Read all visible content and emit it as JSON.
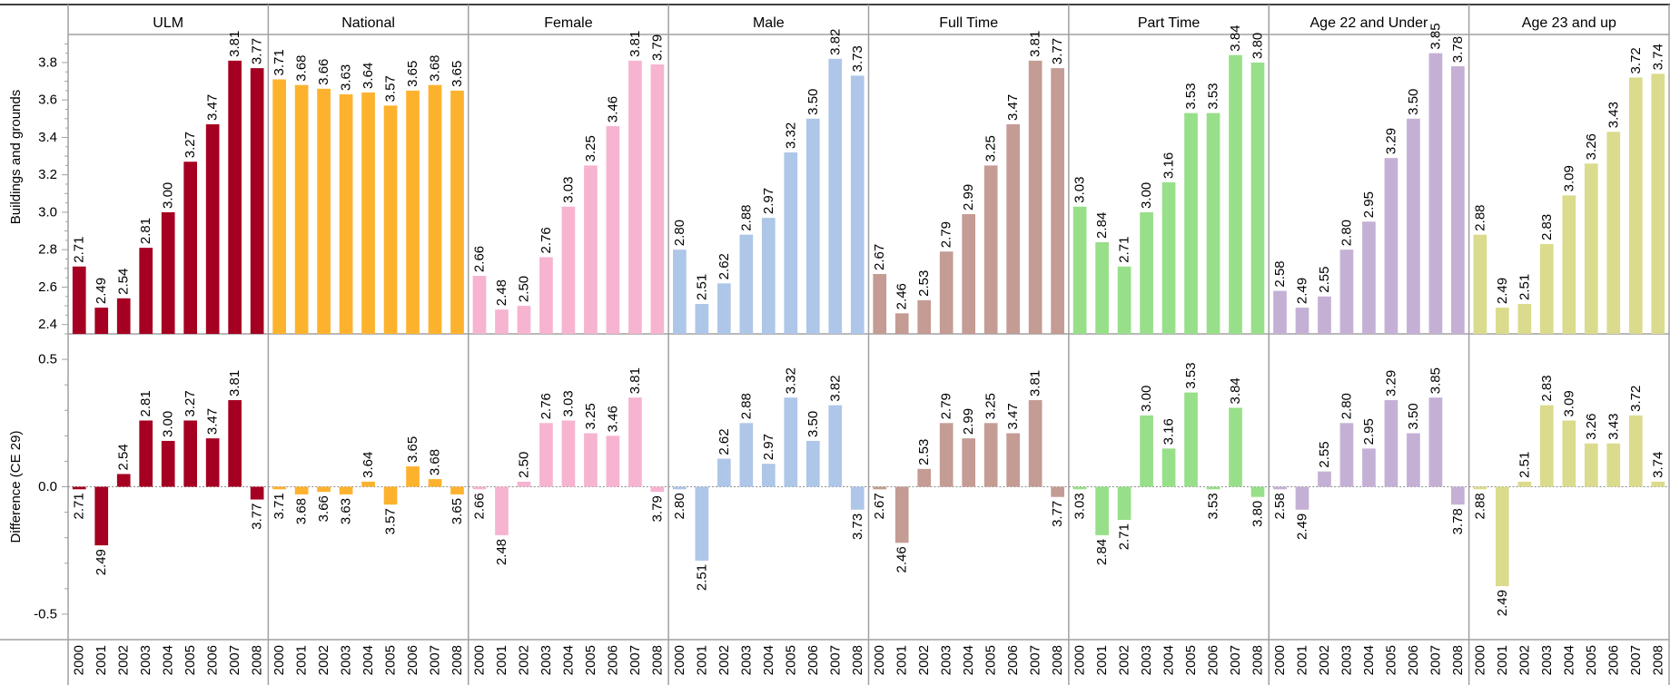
{
  "chart_data": {
    "type": "bar",
    "years": [
      "2000",
      "2001",
      "2002",
      "2003",
      "2004",
      "2005",
      "2006",
      "2007",
      "2008"
    ],
    "panels": [
      {
        "name": "ULM",
        "color": "#a50021",
        "values": [
          "2.71",
          "2.49",
          "2.54",
          "2.81",
          "3.00",
          "3.27",
          "3.47",
          "3.81",
          "3.77"
        ],
        "diff": [
          -0.01,
          -0.23,
          0.05,
          0.26,
          0.18,
          0.26,
          0.19,
          0.34,
          -0.05
        ]
      },
      {
        "name": "National",
        "color": "#fdb22e",
        "values": [
          "3.71",
          "3.68",
          "3.66",
          "3.63",
          "3.64",
          "3.57",
          "3.65",
          "3.68",
          "3.65"
        ],
        "diff": [
          -0.01,
          -0.03,
          -0.02,
          -0.03,
          0.02,
          -0.07,
          0.08,
          0.03,
          -0.03
        ]
      },
      {
        "name": "Female",
        "color": "#f6b4d1",
        "values": [
          "2.66",
          "2.48",
          "2.50",
          "2.76",
          "3.03",
          "3.25",
          "3.46",
          "3.81",
          "3.79"
        ],
        "diff": [
          -0.01,
          -0.19,
          0.02,
          0.25,
          0.26,
          0.21,
          0.2,
          0.35,
          -0.02
        ]
      },
      {
        "name": "Male",
        "color": "#aec6e8",
        "values": [
          "2.80",
          "2.51",
          "2.62",
          "2.88",
          "2.97",
          "3.32",
          "3.50",
          "3.82",
          "3.73"
        ],
        "diff": [
          -0.01,
          -0.29,
          0.11,
          0.25,
          0.09,
          0.35,
          0.18,
          0.32,
          -0.09
        ]
      },
      {
        "name": "Full Time",
        "color": "#c49c94",
        "values": [
          "2.67",
          "2.46",
          "2.53",
          "2.79",
          "2.99",
          "3.25",
          "3.47",
          "3.81",
          "3.77"
        ],
        "diff": [
          -0.01,
          -0.22,
          0.07,
          0.25,
          0.19,
          0.25,
          0.21,
          0.34,
          -0.04
        ]
      },
      {
        "name": "Part Time",
        "color": "#98df8a",
        "values": [
          "3.03",
          "2.84",
          "2.71",
          "3.00",
          "3.16",
          "3.53",
          "3.53",
          "3.84",
          "3.80"
        ],
        "diff": [
          -0.01,
          -0.19,
          -0.13,
          0.28,
          0.15,
          0.37,
          -0.01,
          0.31,
          -0.04
        ]
      },
      {
        "name": "Age 22 and Under",
        "color": "#c5b0d5",
        "values": [
          "2.58",
          "2.49",
          "2.55",
          "2.80",
          "2.95",
          "3.29",
          "3.50",
          "3.85",
          "3.78"
        ],
        "diff": [
          -0.01,
          -0.09,
          0.06,
          0.25,
          0.15,
          0.34,
          0.21,
          0.35,
          -0.07
        ]
      },
      {
        "name": "Age 23 and up",
        "color": "#dbdb8d",
        "values": [
          "2.88",
          "2.49",
          "2.51",
          "2.83",
          "3.09",
          "3.26",
          "3.43",
          "3.72",
          "3.74"
        ],
        "diff": [
          -0.01,
          -0.39,
          0.02,
          0.32,
          0.26,
          0.17,
          0.17,
          0.28,
          0.02
        ]
      }
    ],
    "top_axis": {
      "label": "Buildings and grounds",
      "ylim": [
        2.35,
        3.95
      ],
      "ticks": [
        "2.4",
        "2.6",
        "2.8",
        "3.0",
        "3.2",
        "3.4",
        "3.6",
        "3.8"
      ]
    },
    "bottom_axis": {
      "label": "Difference (CE 29)",
      "ylim": [
        -0.6,
        0.6
      ],
      "ticks": [
        "0.5",
        "0.0",
        "-0.5"
      ]
    }
  }
}
